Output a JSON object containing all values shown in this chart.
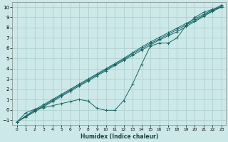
{
  "xlabel": "Humidex (Indice chaleur)",
  "xlim": [
    -0.5,
    23.5
  ],
  "ylim": [
    -1.5,
    10.5
  ],
  "xticks": [
    0,
    1,
    2,
    3,
    4,
    5,
    6,
    7,
    8,
    9,
    10,
    11,
    12,
    13,
    14,
    15,
    16,
    17,
    18,
    19,
    20,
    21,
    22,
    23
  ],
  "yticks": [
    -1,
    0,
    1,
    2,
    3,
    4,
    5,
    6,
    7,
    8,
    9,
    10
  ],
  "background_color": "#cce8e8",
  "grid_color": "#aacccc",
  "line_color": "#1a6666",
  "wave_x": [
    0,
    1,
    2,
    3,
    4,
    5,
    6,
    7,
    8,
    9,
    10,
    11,
    12,
    13,
    14,
    15,
    16,
    17,
    18,
    19,
    20,
    21,
    22,
    23
  ],
  "wave_y": [
    -1.2,
    -0.3,
    0.05,
    0.2,
    0.4,
    0.6,
    0.8,
    1.0,
    0.85,
    0.15,
    -0.05,
    -0.05,
    0.9,
    2.5,
    4.4,
    6.2,
    6.5,
    6.5,
    7.0,
    8.2,
    9.0,
    9.5,
    9.8,
    10.0
  ],
  "lin1_x": [
    0,
    1,
    2,
    3,
    4,
    5,
    6,
    7,
    8,
    9,
    10,
    11,
    12,
    13,
    14,
    15,
    16,
    17,
    18,
    19,
    20,
    21,
    22,
    23
  ],
  "lin1_y": [
    -1.2,
    -0.7,
    -0.2,
    0.3,
    0.8,
    1.3,
    1.8,
    2.3,
    2.8,
    3.3,
    3.8,
    4.3,
    4.8,
    5.3,
    5.8,
    6.3,
    6.8,
    7.2,
    7.6,
    8.1,
    8.6,
    9.1,
    9.6,
    10.0
  ],
  "lin2_x": [
    0,
    1,
    2,
    3,
    4,
    5,
    6,
    7,
    8,
    9,
    10,
    11,
    12,
    13,
    14,
    15,
    16,
    17,
    18,
    19,
    20,
    21,
    22,
    23
  ],
  "lin2_y": [
    -1.2,
    -0.65,
    -0.1,
    0.4,
    0.9,
    1.4,
    1.9,
    2.4,
    2.9,
    3.4,
    3.9,
    4.4,
    4.9,
    5.45,
    5.95,
    6.45,
    6.9,
    7.35,
    7.8,
    8.25,
    8.7,
    9.2,
    9.65,
    10.1
  ],
  "lin3_x": [
    0,
    1,
    2,
    3,
    4,
    5,
    6,
    7,
    8,
    9,
    10,
    11,
    12,
    13,
    14,
    15,
    16,
    17,
    18,
    19,
    20,
    21,
    22,
    23
  ],
  "lin3_y": [
    -1.2,
    -0.6,
    0.0,
    0.5,
    1.0,
    1.5,
    2.0,
    2.5,
    3.0,
    3.5,
    4.0,
    4.5,
    5.0,
    5.55,
    6.1,
    6.6,
    7.05,
    7.5,
    7.95,
    8.4,
    8.85,
    9.3,
    9.75,
    10.2
  ]
}
